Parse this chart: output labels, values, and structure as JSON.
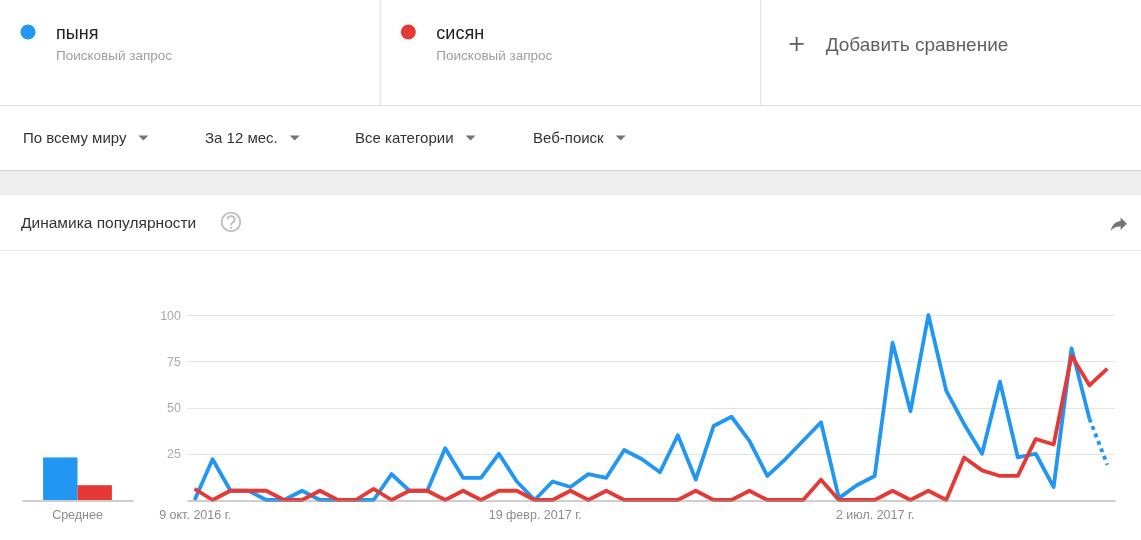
{
  "chart_data": [
    {
      "type": "bar",
      "title": "Динамика популярности",
      "categories": [
        "Среднее"
      ],
      "series": [
        {
          "color": "#2196f3",
          "values": [
            23
          ]
        },
        {
          "color": "#e53935",
          "values": [
            8
          ]
        }
      ],
      "ylim": [
        0,
        100
      ],
      "tick_labels": "x"
    },
    {
      "type": "line",
      "annotations": [
        "Поисковый запрос",
        "Поисковый запрос",
        "Добавить сравнение",
        "По всему миру",
        "За 12 мес.",
        "Все категории",
        "Веб-поиск"
      ],
      "x": [
        "2016-10-09",
        "2016-10-16",
        "2016-10-23",
        "2016-10-30",
        "2016-11-06",
        "2016-11-13",
        "2016-11-20",
        "2016-11-27",
        "2016-12-04",
        "2016-12-11",
        "2016-12-18",
        "2016-12-25",
        "2017-01-01",
        "2017-01-08",
        "2017-01-15",
        "2017-01-22",
        "2017-01-29",
        "2017-02-05",
        "2017-02-12",
        "2017-02-19",
        "2017-02-26",
        "2017-03-05",
        "2017-03-12",
        "2017-03-19",
        "2017-03-26",
        "2017-04-02",
        "2017-04-09",
        "2017-04-16",
        "2017-04-23",
        "2017-04-30",
        "2017-05-07",
        "2017-05-14",
        "2017-05-21",
        "2017-05-28",
        "2017-06-04",
        "2017-06-11",
        "2017-06-18",
        "2017-06-25",
        "2017-07-02",
        "2017-07-09",
        "2017-07-16",
        "2017-07-23",
        "2017-07-30",
        "2017-08-06",
        "2017-08-13",
        "2017-08-20",
        "2017-08-27",
        "2017-09-03",
        "2017-09-10",
        "2017-09-17",
        "2017-09-24",
        "2017-10-01"
      ],
      "series": [
        {
          "name": "пыня",
          "color": "#2196f3",
          "values": [
            0,
            22,
            5,
            5,
            0,
            0,
            5,
            0,
            0,
            0,
            0,
            14,
            5,
            5,
            28,
            12,
            12,
            25,
            10,
            0,
            10,
            7,
            14,
            12,
            27,
            22,
            15,
            35,
            11,
            40,
            45,
            32,
            13,
            22,
            32,
            42,
            1,
            8,
            13,
            85,
            48,
            100,
            59,
            41,
            25,
            64,
            23,
            25,
            7,
            82,
            44,
            null
          ]
        },
        {
          "name": "сисян",
          "color": "#e53935",
          "values": [
            6,
            0,
            5,
            5,
            5,
            0,
            0,
            5,
            0,
            0,
            6,
            0,
            5,
            5,
            0,
            5,
            0,
            5,
            5,
            0,
            0,
            5,
            0,
            5,
            0,
            0,
            0,
            0,
            5,
            0,
            0,
            5,
            0,
            0,
            0,
            11,
            0,
            0,
            0,
            5,
            0,
            5,
            0,
            23,
            16,
            13,
            13,
            33,
            30,
            78,
            62,
            71
          ]
        },
        {
          "color": "#2196f3",
          "line_style": "dotted",
          "values": [
            null,
            null,
            null,
            null,
            null,
            null,
            null,
            null,
            null,
            null,
            null,
            null,
            null,
            null,
            null,
            null,
            null,
            null,
            null,
            null,
            null,
            null,
            null,
            null,
            null,
            null,
            null,
            null,
            null,
            null,
            null,
            null,
            null,
            null,
            null,
            null,
            null,
            null,
            null,
            null,
            null,
            null,
            null,
            null,
            null,
            null,
            null,
            null,
            null,
            null,
            44,
            19
          ]
        }
      ],
      "xlim": [
        "2016-10-06",
        "2017-10-04"
      ],
      "xticks": [
        {
          "value": "2016-10-09",
          "label": "9 окт. 2016 г."
        },
        {
          "value": "2017-02-19",
          "label": "19 февр. 2017 г."
        },
        {
          "value": "2017-07-02",
          "label": "2 июл. 2017 г."
        }
      ],
      "ylim": [
        0,
        100
      ],
      "yticks": [
        25,
        50,
        75,
        100
      ],
      "grid": "y",
      "legend": "top"
    }
  ]
}
